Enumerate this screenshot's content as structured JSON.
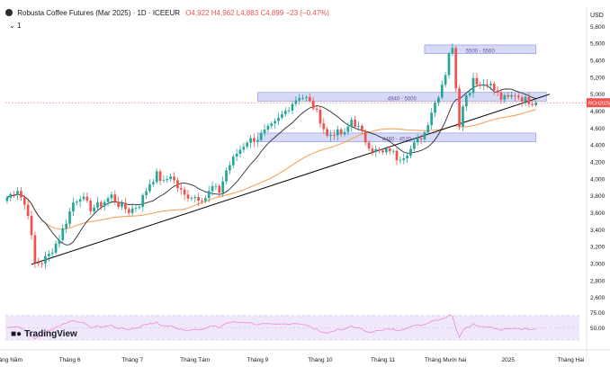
{
  "header": {
    "title": "Robusta Coffee Futures (Mar 2025) · 1D · ICEEUR",
    "ohlc": "O4,922 H4,962 L4,883 C4,899 −23 (−0.47%)",
    "sub_label": "1"
  },
  "branding": {
    "name": "TradingView"
  },
  "colors": {
    "up": "#26a69a",
    "down": "#ef5350",
    "ma_fast": "#2a2e39",
    "ma_slow": "#f7a35c",
    "trendline": "#000000",
    "zone_fill": "#d1d4f5",
    "zone_stroke": "#8e94e0",
    "rsi": "#e58bd8",
    "rsi_band": "#f1e7fb"
  },
  "chart_data": {
    "type": "candlestick",
    "currency_label": "USD",
    "ylim": [
      2500,
      5900
    ],
    "y_ticks": [
      2600,
      2800,
      3000,
      3200,
      3400,
      3600,
      3800,
      4000,
      4200,
      4400,
      4600,
      4800,
      5000,
      5200,
      5400,
      5600,
      5800
    ],
    "y_tick_labels": [
      "2,600",
      "2,800",
      "3,000",
      "3,200",
      "3,400",
      "3,600",
      "3,800",
      "4,000",
      "4,200",
      "4,400",
      "4,600",
      "4,800",
      "5,000",
      "5,200",
      "5,400",
      "5,600",
      "5,800"
    ],
    "x_labels": [
      "Tháng Năm",
      "Tháng 6",
      "Tháng 7",
      "Tháng Tám",
      "Tháng 9",
      "Tháng 10",
      "Tháng 11",
      "Tháng Mười hai",
      "2025",
      "Tháng Hai"
    ],
    "x_label_index": [
      0,
      18,
      36,
      54,
      72,
      90,
      108,
      126,
      144,
      162
    ],
    "bars_total": 165,
    "anchors": [
      [
        0,
        3780
      ],
      [
        3,
        3880
      ],
      [
        6,
        3600
      ],
      [
        8,
        3000
      ],
      [
        10,
        3020
      ],
      [
        12,
        3100
      ],
      [
        15,
        3300
      ],
      [
        17,
        3500
      ],
      [
        19,
        3720
      ],
      [
        21,
        3800
      ],
      [
        24,
        3650
      ],
      [
        27,
        3700
      ],
      [
        30,
        3800
      ],
      [
        32,
        3700
      ],
      [
        35,
        3620
      ],
      [
        38,
        3700
      ],
      [
        41,
        3950
      ],
      [
        43,
        4050
      ],
      [
        45,
        3950
      ],
      [
        47,
        4050
      ],
      [
        49,
        3900
      ],
      [
        51,
        3800
      ],
      [
        53,
        3800
      ],
      [
        55,
        3780
      ],
      [
        57,
        3780
      ],
      [
        59,
        3900
      ],
      [
        61,
        3850
      ],
      [
        63,
        4100
      ],
      [
        66,
        4300
      ],
      [
        69,
        4450
      ],
      [
        72,
        4480
      ],
      [
        74,
        4550
      ],
      [
        77,
        4650
      ],
      [
        80,
        4800
      ],
      [
        82,
        4900
      ],
      [
        84,
        4980
      ],
      [
        86,
        4950
      ],
      [
        88,
        4850
      ],
      [
        90,
        4700
      ],
      [
        92,
        4500
      ],
      [
        94,
        4550
      ],
      [
        97,
        4520
      ],
      [
        99,
        4700
      ],
      [
        101,
        4600
      ],
      [
        103,
        4450
      ],
      [
        105,
        4350
      ],
      [
        108,
        4300
      ],
      [
        110,
        4350
      ],
      [
        112,
        4250
      ],
      [
        114,
        4280
      ],
      [
        116,
        4350
      ],
      [
        118,
        4450
      ],
      [
        120,
        4550
      ],
      [
        122,
        4800
      ],
      [
        124,
        5000
      ],
      [
        126,
        5250
      ],
      [
        127,
        5500
      ],
      [
        128,
        5520
      ],
      [
        129,
        5100
      ],
      [
        130,
        4650
      ],
      [
        131,
        4900
      ],
      [
        133,
        5050
      ],
      [
        134,
        5200
      ],
      [
        136,
        5100
      ],
      [
        138,
        5150
      ],
      [
        140,
        5050
      ],
      [
        142,
        4950
      ],
      [
        144,
        4950
      ],
      [
        146,
        5000
      ],
      [
        148,
        4950
      ],
      [
        150,
        4920
      ],
      [
        152,
        4899
      ]
    ],
    "series": [
      {
        "name": "",
        "kind": "moving-average-fast"
      },
      {
        "name": "",
        "kind": "moving-average-slow"
      }
    ],
    "annotations": [
      {
        "type": "zone",
        "label": "5500 - 5560",
        "low": 5500,
        "high": 5560,
        "from_bar": 120,
        "to_bar": 152
      },
      {
        "type": "zone",
        "label": "4940 - 5000",
        "low": 4940,
        "high": 5000,
        "from_bar": 72,
        "to_bar": 155
      },
      {
        "type": "zone",
        "label": "4460 - 4520",
        "low": 4460,
        "high": 4520,
        "from_bar": 72,
        "to_bar": 152
      },
      {
        "type": "trendline",
        "from": [
          7,
          2990
        ],
        "to": [
          156,
          5000
        ]
      }
    ],
    "last_price": {
      "value": 4899,
      "label": "4,899",
      "tag": "RCH2025"
    },
    "rsi": {
      "ylim": [
        30,
        80
      ],
      "levels": [
        30,
        70
      ],
      "tick_labels": [
        "75.00",
        "50.00"
      ],
      "tick_values": [
        75,
        50
      ]
    }
  }
}
